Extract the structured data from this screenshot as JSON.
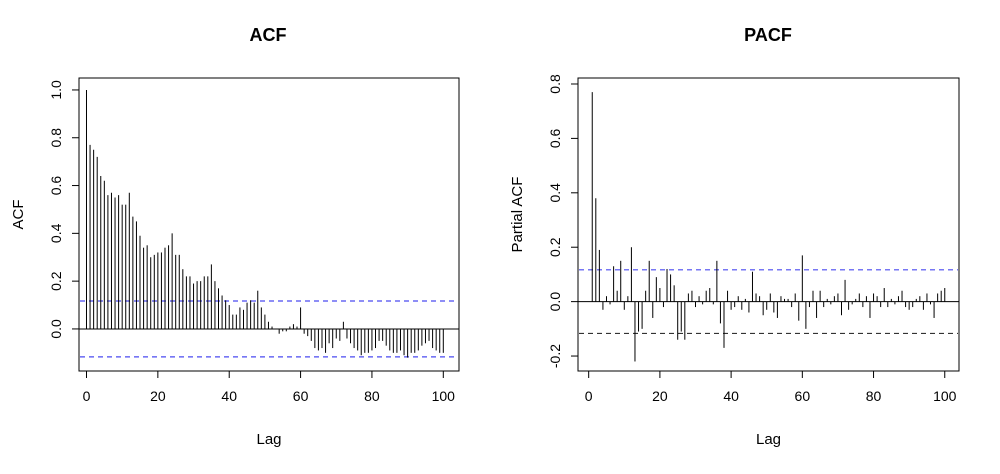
{
  "chart_data": [
    {
      "type": "bar",
      "title": "ACF",
      "xlabel": "Lag",
      "ylabel": "ACF",
      "xlim": [
        0,
        100
      ],
      "ylim": [
        -0.15,
        1.0
      ],
      "x_ticks": [
        0,
        20,
        40,
        60,
        80,
        100
      ],
      "x_tick_labels": [
        "0",
        "20",
        "40",
        "60",
        "80",
        "100"
      ],
      "y_ticks": [
        0.0,
        0.2,
        0.4,
        0.6,
        0.8,
        1.0
      ],
      "y_tick_labels": [
        "0.0",
        "0.2",
        "0.4",
        "0.6",
        "0.8",
        "1.0"
      ],
      "confidence_bound": 0.117,
      "confidence_color": "#4a4af0",
      "bar_color": "#000000",
      "lags": [
        0,
        1,
        2,
        3,
        4,
        5,
        6,
        7,
        8,
        9,
        10,
        11,
        12,
        13,
        14,
        15,
        16,
        17,
        18,
        19,
        20,
        21,
        22,
        23,
        24,
        25,
        26,
        27,
        28,
        29,
        30,
        31,
        32,
        33,
        34,
        35,
        36,
        37,
        38,
        39,
        40,
        41,
        42,
        43,
        44,
        45,
        46,
        47,
        48,
        49,
        50,
        51,
        52,
        53,
        54,
        55,
        56,
        57,
        58,
        59,
        60,
        61,
        62,
        63,
        64,
        65,
        66,
        67,
        68,
        69,
        70,
        71,
        72,
        73,
        74,
        75,
        76,
        77,
        78,
        79,
        80,
        81,
        82,
        83,
        84,
        85,
        86,
        87,
        88,
        89,
        90,
        91,
        92,
        93,
        94,
        95,
        96,
        97,
        98,
        99,
        100
      ],
      "values": [
        1.0,
        0.77,
        0.75,
        0.72,
        0.64,
        0.62,
        0.56,
        0.57,
        0.55,
        0.56,
        0.52,
        0.52,
        0.57,
        0.47,
        0.45,
        0.39,
        0.34,
        0.35,
        0.3,
        0.31,
        0.32,
        0.32,
        0.34,
        0.35,
        0.4,
        0.31,
        0.31,
        0.25,
        0.22,
        0.22,
        0.19,
        0.2,
        0.2,
        0.22,
        0.22,
        0.27,
        0.2,
        0.17,
        0.14,
        0.12,
        0.1,
        0.06,
        0.06,
        0.09,
        0.08,
        0.11,
        0.12,
        0.11,
        0.16,
        0.09,
        0.06,
        0.03,
        0.01,
        0.0,
        -0.02,
        -0.01,
        -0.01,
        0.01,
        0.02,
        0.01,
        0.09,
        -0.02,
        -0.03,
        -0.05,
        -0.08,
        -0.09,
        -0.08,
        -0.1,
        -0.06,
        -0.08,
        -0.04,
        -0.05,
        0.03,
        -0.04,
        -0.06,
        -0.08,
        -0.09,
        -0.11,
        -0.1,
        -0.1,
        -0.09,
        -0.08,
        -0.05,
        -0.05,
        -0.07,
        -0.09,
        -0.1,
        -0.1,
        -0.09,
        -0.11,
        -0.12,
        -0.1,
        -0.1,
        -0.09,
        -0.07,
        -0.06,
        -0.05,
        -0.08,
        -0.09,
        -0.1,
        -0.1
      ]
    },
    {
      "type": "bar",
      "title": "PACF",
      "xlabel": "Lag",
      "ylabel": "Partial ACF",
      "xlim": [
        0,
        100
      ],
      "ylim": [
        -0.25,
        0.8
      ],
      "x_ticks": [
        0,
        20,
        40,
        60,
        80,
        100
      ],
      "x_tick_labels": [
        "0",
        "20",
        "40",
        "60",
        "80",
        "100"
      ],
      "y_ticks": [
        -0.2,
        0.0,
        0.2,
        0.4,
        0.6,
        0.8
      ],
      "y_tick_labels": [
        "-0.2",
        "0.0",
        "0.2",
        "0.4",
        "0.6",
        "0.8"
      ],
      "confidence_bound": 0.117,
      "confidence_color": "#4a4af0",
      "confidence_color_lower": "#333333",
      "bar_color": "#000000",
      "lags": [
        1,
        2,
        3,
        4,
        5,
        6,
        7,
        8,
        9,
        10,
        11,
        12,
        13,
        14,
        15,
        16,
        17,
        18,
        19,
        20,
        21,
        22,
        23,
        24,
        25,
        26,
        27,
        28,
        29,
        30,
        31,
        32,
        33,
        34,
        35,
        36,
        37,
        38,
        39,
        40,
        41,
        42,
        43,
        44,
        45,
        46,
        47,
        48,
        49,
        50,
        51,
        52,
        53,
        54,
        55,
        56,
        57,
        58,
        59,
        60,
        61,
        62,
        63,
        64,
        65,
        66,
        67,
        68,
        69,
        70,
        71,
        72,
        73,
        74,
        75,
        76,
        77,
        78,
        79,
        80,
        81,
        82,
        83,
        84,
        85,
        86,
        87,
        88,
        89,
        90,
        91,
        92,
        93,
        94,
        95,
        96,
        97,
        98,
        99,
        100
      ],
      "values": [
        0.77,
        0.38,
        0.19,
        -0.03,
        0.02,
        -0.01,
        0.13,
        0.04,
        0.15,
        -0.03,
        0.02,
        0.2,
        -0.22,
        -0.11,
        -0.1,
        0.04,
        0.15,
        -0.06,
        0.09,
        0.05,
        -0.02,
        0.12,
        0.1,
        0.06,
        -0.14,
        -0.11,
        -0.14,
        0.03,
        0.04,
        -0.02,
        0.02,
        -0.01,
        0.04,
        0.05,
        -0.01,
        0.15,
        -0.08,
        -0.17,
        0.04,
        -0.03,
        -0.02,
        0.02,
        -0.03,
        0.01,
        -0.04,
        0.11,
        0.03,
        0.02,
        -0.05,
        -0.03,
        0.03,
        -0.04,
        -0.06,
        0.02,
        0.01,
        0.01,
        -0.02,
        0.03,
        -0.07,
        0.17,
        -0.1,
        -0.02,
        0.04,
        -0.06,
        0.04,
        -0.02,
        0.01,
        -0.01,
        0.02,
        0.03,
        -0.05,
        0.08,
        -0.03,
        -0.01,
        0.01,
        0.03,
        -0.02,
        0.02,
        -0.06,
        0.03,
        0.02,
        -0.02,
        0.05,
        -0.02,
        0.01,
        -0.01,
        0.02,
        0.04,
        -0.02,
        -0.03,
        -0.02,
        0.01,
        0.02,
        -0.03,
        0.03,
        -0.01,
        -0.06,
        0.03,
        0.04,
        0.05
      ]
    }
  ]
}
